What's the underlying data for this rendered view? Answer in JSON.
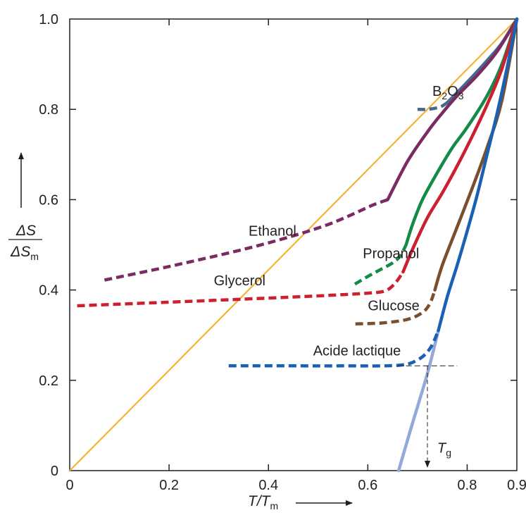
{
  "chart_data": {
    "type": "line",
    "xlim": [
      0,
      0.9
    ],
    "ylim": [
      0,
      1.0
    ],
    "x_ticks": [
      {
        "value": 0,
        "label": "0"
      },
      {
        "value": 0.2,
        "label": "0.2"
      },
      {
        "value": 0.4,
        "label": "0.4"
      },
      {
        "value": 0.6,
        "label": "0.6"
      },
      {
        "value": 0.8,
        "label": "0.8"
      },
      {
        "value": 0.9,
        "label": "0.9"
      }
    ],
    "y_ticks": [
      {
        "value": 0,
        "label": "0"
      },
      {
        "value": 0.2,
        "label": "0.2"
      },
      {
        "value": 0.4,
        "label": "0.4"
      },
      {
        "value": 0.6,
        "label": "0.6"
      },
      {
        "value": 0.8,
        "label": "0.8"
      },
      {
        "value": 1.0,
        "label": "1.0"
      }
    ],
    "xlabel": {
      "main": "T/T",
      "sub": "m"
    },
    "ylabel": {
      "numerator": "ΔS",
      "denominator_main": "ΔS",
      "denominator_sub": "m"
    },
    "reference_line": {
      "color": "#f5b335",
      "x": [
        0,
        0.9
      ],
      "y": [
        0,
        1.0
      ]
    },
    "series": [
      {
        "name": "B2O3",
        "label_parts": {
          "main": "B",
          "sub1": "2",
          "mid": "O",
          "sub2": "3"
        },
        "color": "#46688f",
        "solid": {
          "x": [
            0.76,
            0.8,
            0.84,
            0.87,
            0.9
          ],
          "y": [
            0.815,
            0.86,
            0.908,
            0.947,
            1.0
          ]
        },
        "dashed": {
          "x": [
            0.7,
            0.72,
            0.745,
            0.76
          ],
          "y": [
            0.8,
            0.8,
            0.805,
            0.815
          ]
        },
        "label_value": {
          "x": 0.73,
          "y": 0.83
        }
      },
      {
        "name": "Ethanol",
        "color": "#7b2b64",
        "solid": {
          "x": [
            0.64,
            0.68,
            0.72,
            0.75,
            0.78,
            0.82,
            0.86,
            0.9
          ],
          "y": [
            0.6,
            0.685,
            0.75,
            0.792,
            0.83,
            0.875,
            0.928,
            1.0
          ]
        },
        "dashed": {
          "x": [
            0.07,
            0.2,
            0.35,
            0.45,
            0.52,
            0.57,
            0.61,
            0.64
          ],
          "y": [
            0.422,
            0.452,
            0.49,
            0.52,
            0.545,
            0.568,
            0.588,
            0.6
          ]
        },
        "label_value": {
          "x": 0.36,
          "y": 0.52
        }
      },
      {
        "name": "Propanol",
        "color": "#138a45",
        "solid": {
          "x": [
            0.677,
            0.69,
            0.71,
            0.74,
            0.77,
            0.8,
            0.84,
            0.87,
            0.9
          ],
          "y": [
            0.5,
            0.545,
            0.6,
            0.66,
            0.715,
            0.76,
            0.83,
            0.9,
            1.0
          ]
        },
        "dashed": {
          "x": [
            0.574,
            0.6,
            0.625,
            0.65,
            0.665,
            0.677
          ],
          "y": [
            0.413,
            0.43,
            0.445,
            0.46,
            0.475,
            0.5
          ]
        },
        "label_value": {
          "x": 0.59,
          "y": 0.47
        }
      },
      {
        "name": "Glycerol",
        "color": "#cc1f2f",
        "solid": {
          "x": [
            0.671,
            0.69,
            0.72,
            0.75,
            0.78,
            0.81,
            0.84,
            0.87,
            0.9
          ],
          "y": [
            0.44,
            0.49,
            0.56,
            0.615,
            0.675,
            0.74,
            0.81,
            0.89,
            1.0
          ]
        },
        "dashed": {
          "x": [
            0.015,
            0.2,
            0.4,
            0.52,
            0.6,
            0.635,
            0.655,
            0.671
          ],
          "y": [
            0.365,
            0.373,
            0.382,
            0.388,
            0.393,
            0.398,
            0.415,
            0.44
          ]
        },
        "label_value": {
          "x": 0.29,
          "y": 0.41
        }
      },
      {
        "name": "Glucose",
        "color": "#7a4f2d",
        "solid": {
          "x": [
            0.735,
            0.75,
            0.78,
            0.81,
            0.84,
            0.87,
            0.9
          ],
          "y": [
            0.4,
            0.455,
            0.54,
            0.625,
            0.715,
            0.82,
            1.0
          ]
        },
        "dashed": {
          "x": [
            0.575,
            0.63,
            0.68,
            0.71,
            0.725,
            0.735
          ],
          "y": [
            0.325,
            0.327,
            0.335,
            0.35,
            0.37,
            0.4
          ]
        },
        "label_value": {
          "x": 0.6,
          "y": 0.355
        }
      },
      {
        "name": "Acide lactique",
        "color": "#1a61b5",
        "solid": {
          "x": [
            0.742,
            0.76,
            0.78,
            0.8,
            0.82,
            0.84,
            0.86,
            0.88,
            0.9
          ],
          "y": [
            0.31,
            0.385,
            0.455,
            0.53,
            0.61,
            0.7,
            0.79,
            0.89,
            1.0
          ]
        },
        "dashed": {
          "x": [
            0.32,
            0.45,
            0.55,
            0.66,
            0.7,
            0.725,
            0.742
          ],
          "y": [
            0.232,
            0.232,
            0.232,
            0.233,
            0.245,
            0.27,
            0.31
          ]
        },
        "extrapolation": {
          "color": "#93a9d9",
          "x": [
            0.662,
            0.69,
            0.72,
            0.742
          ],
          "y": [
            0.0,
            0.105,
            0.215,
            0.31
          ]
        },
        "label_value": {
          "x": 0.49,
          "y": 0.255
        }
      }
    ],
    "tg_annotation": {
      "label": {
        "main": "T",
        "sub": "g"
      },
      "x": 0.72,
      "y": 0.232,
      "hline_x": [
        0.66,
        0.78
      ]
    }
  }
}
